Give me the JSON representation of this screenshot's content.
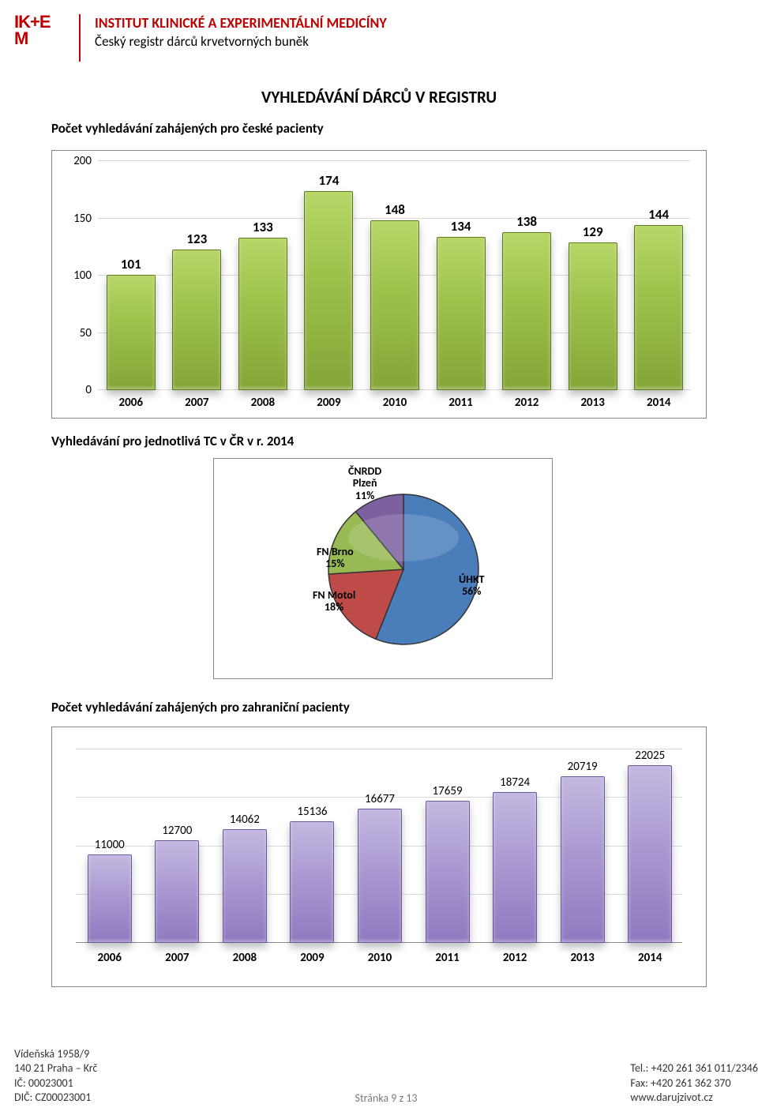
{
  "header": {
    "logo_line1": "IK+E",
    "logo_line2": "M",
    "inst_title": "INSTITUT KLINICKÉ A EXPERIMENTÁLNÍ MEDICÍNY",
    "inst_sub": "Český registr dárců krvetvorných buněk"
  },
  "page_title": "VYHLEDÁVÁNÍ DÁRCŮ V REGISTRU",
  "chart1": {
    "title": "Počet vyhledávání zahájených pro české pacienty",
    "type": "bar",
    "categories": [
      "2006",
      "2007",
      "2008",
      "2009",
      "2010",
      "2011",
      "2012",
      "2013",
      "2014"
    ],
    "values": [
      101,
      123,
      133,
      174,
      148,
      134,
      138,
      129,
      144
    ],
    "ymax": 200,
    "ytick_step": 50,
    "bar_color": "#9fc24d",
    "bar_border": "#5b7a1e",
    "grid_color": "#d9d9d9",
    "label_fontsize": 17
  },
  "section2_title": "Vyhledávání pro jednotlivá TC v ČR v r. 2014",
  "pie": {
    "type": "pie",
    "slices": [
      {
        "label": "ÚHKT",
        "pct": 56,
        "color": "#4a7ebb",
        "text": "ÚHKT\n56%"
      },
      {
        "label": "FN Motol",
        "pct": 18,
        "color": "#be4b48",
        "text": "FN Motol\n18%"
      },
      {
        "label": "FN Brno",
        "pct": 15,
        "color": "#98b954",
        "text": "FN Brno\n15%"
      },
      {
        "label": "ČNRDD Plzeň",
        "pct": 11,
        "color": "#7d60a0",
        "text": "ČNRDD\nPlzeň\n11%"
      }
    ],
    "border_color": "#333333"
  },
  "chart3": {
    "title": "Počet vyhledávání zahájených pro zahraniční pacienty",
    "type": "bar",
    "categories": [
      "2006",
      "2007",
      "2008",
      "2009",
      "2010",
      "2011",
      "2012",
      "2013",
      "2014"
    ],
    "values": [
      11000,
      12700,
      14062,
      15136,
      16677,
      17659,
      18724,
      20719,
      22025
    ],
    "ymax": 24000,
    "bar_color": "#a896d0",
    "bar_border": "#6a5a9a",
    "grid_color": "#d9d9d9"
  },
  "footer": {
    "addr1": "Vídeňská 1958/9",
    "addr2": "140 21 Praha – Krč",
    "ic": "IČ: 00023001",
    "dic": "DIČ: CZ00023001",
    "page": "Stránka 9 z 13",
    "tel": "Tel.: +420 261 361 011/2346",
    "fax": "Fax: +420 261 362 370",
    "web": "www.darujzivot.cz"
  }
}
